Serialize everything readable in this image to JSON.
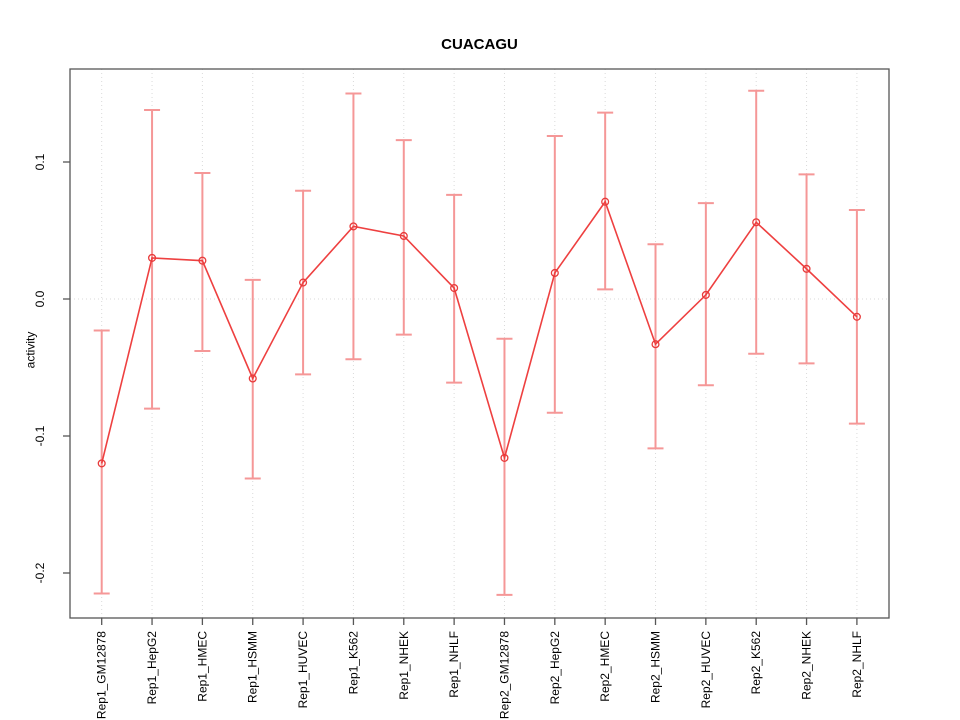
{
  "chart_data": {
    "type": "line",
    "subtype": "points-with-error-bars",
    "title": "CUACAGU",
    "xlabel": "",
    "ylabel": "activity",
    "categories": [
      "Rep1_GM12878",
      "Rep1_HepG2",
      "Rep1_HMEC",
      "Rep1_HSMM",
      "Rep1_HUVEC",
      "Rep1_K562",
      "Rep1_NHEK",
      "Rep1_NHLF",
      "Rep2_GM12878",
      "Rep2_HepG2",
      "Rep2_HMEC",
      "Rep2_HSMM",
      "Rep2_HUVEC",
      "Rep2_K562",
      "Rep2_NHEK",
      "Rep2_NHLF"
    ],
    "series": [
      {
        "name": "activity",
        "values": [
          -0.12,
          0.03,
          0.028,
          -0.058,
          0.012,
          0.053,
          0.046,
          0.008,
          -0.116,
          0.019,
          0.071,
          -0.033,
          0.003,
          0.056,
          0.022,
          -0.013
        ],
        "error_upper": [
          -0.023,
          0.138,
          0.092,
          0.014,
          0.079,
          0.15,
          0.116,
          0.076,
          -0.029,
          0.119,
          0.136,
          0.04,
          0.07,
          0.152,
          0.091,
          0.065
        ],
        "error_lower": [
          -0.215,
          -0.08,
          -0.038,
          -0.131,
          -0.055,
          -0.044,
          -0.026,
          -0.061,
          -0.216,
          -0.083,
          0.007,
          -0.109,
          -0.063,
          -0.04,
          -0.047,
          -0.091
        ]
      }
    ],
    "yticks": [
      0.1,
      0.0,
      -0.1,
      -0.2
    ],
    "ytick_labels": [
      "0.1",
      "0.0",
      "-0.1",
      "-0.2"
    ],
    "ylim": [
      -0.233,
      0.168
    ],
    "grid": "vertical dotted at each category, horizontal dotted at zero",
    "legend_position": "none",
    "colors": {
      "line": "#ee4040",
      "point": "#e83a3a",
      "whisker": "#f59797",
      "grid": "#dadada",
      "frame": "#565656",
      "text": "#000000"
    }
  }
}
